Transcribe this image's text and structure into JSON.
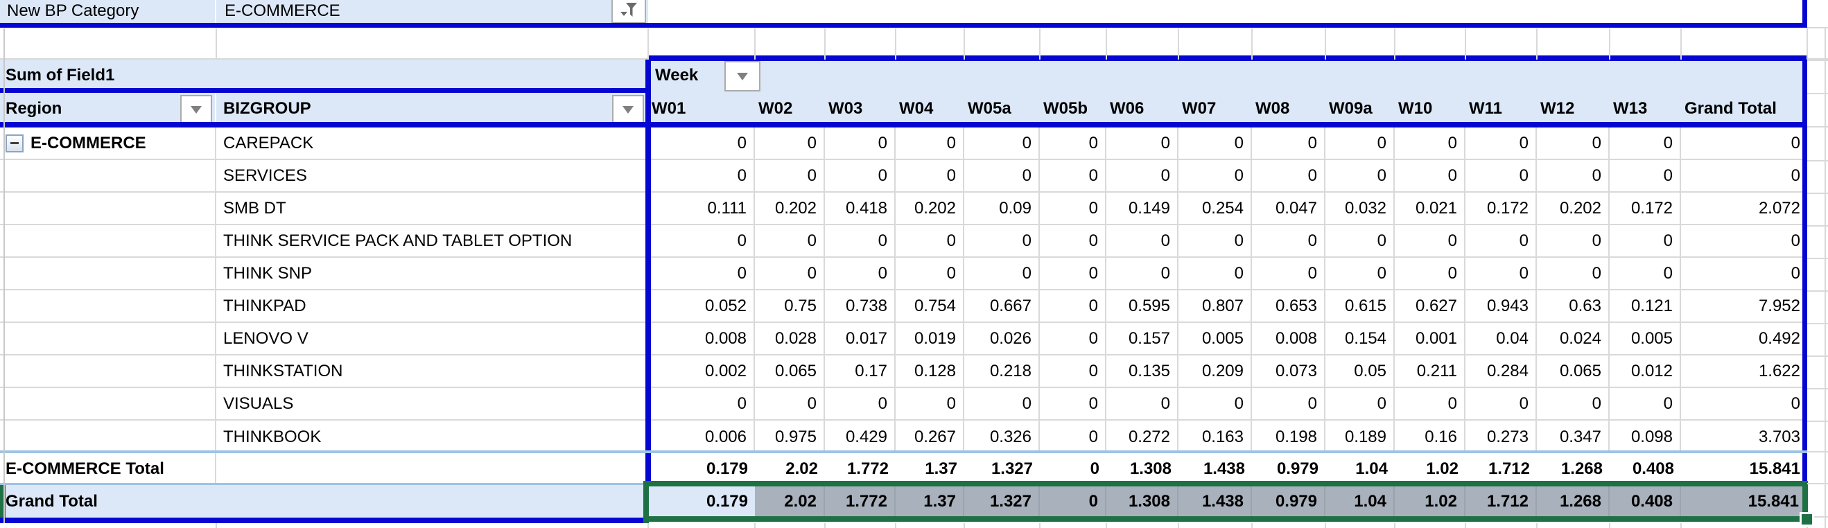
{
  "filter": {
    "label": "New BP Category",
    "value": "E-COMMERCE"
  },
  "pivot": {
    "measure_label": "Sum of Field1",
    "column_field": "Week",
    "row_field_1": "Region",
    "row_field_2": "BIZGROUP",
    "region_group": "E-COMMERCE",
    "columns": [
      "W01",
      "W02",
      "W03",
      "W04",
      "W05a",
      "W05b",
      "W06",
      "W07",
      "W08",
      "W09a",
      "W10",
      "W11",
      "W12",
      "W13",
      "Grand Total"
    ],
    "rows": [
      {
        "bizgroup": "CAREPACK",
        "values": [
          "0",
          "0",
          "0",
          "0",
          "0",
          "0",
          "0",
          "0",
          "0",
          "0",
          "0",
          "0",
          "0",
          "0",
          "0"
        ]
      },
      {
        "bizgroup": "SERVICES",
        "values": [
          "0",
          "0",
          "0",
          "0",
          "0",
          "0",
          "0",
          "0",
          "0",
          "0",
          "0",
          "0",
          "0",
          "0",
          "0"
        ]
      },
      {
        "bizgroup": "SMB DT",
        "values": [
          "0.111",
          "0.202",
          "0.418",
          "0.202",
          "0.09",
          "0",
          "0.149",
          "0.254",
          "0.047",
          "0.032",
          "0.021",
          "0.172",
          "0.202",
          "0.172",
          "2.072"
        ]
      },
      {
        "bizgroup": "THINK SERVICE PACK AND TABLET OPTION",
        "values": [
          "0",
          "0",
          "0",
          "0",
          "0",
          "0",
          "0",
          "0",
          "0",
          "0",
          "0",
          "0",
          "0",
          "0",
          "0"
        ]
      },
      {
        "bizgroup": "THINK SNP",
        "values": [
          "0",
          "0",
          "0",
          "0",
          "0",
          "0",
          "0",
          "0",
          "0",
          "0",
          "0",
          "0",
          "0",
          "0",
          "0"
        ]
      },
      {
        "bizgroup": "THINKPAD",
        "values": [
          "0.052",
          "0.75",
          "0.738",
          "0.754",
          "0.667",
          "0",
          "0.595",
          "0.807",
          "0.653",
          "0.615",
          "0.627",
          "0.943",
          "0.63",
          "0.121",
          "7.952"
        ]
      },
      {
        "bizgroup": "LENOVO V",
        "values": [
          "0.008",
          "0.028",
          "0.017",
          "0.019",
          "0.026",
          "0",
          "0.157",
          "0.005",
          "0.008",
          "0.154",
          "0.001",
          "0.04",
          "0.024",
          "0.005",
          "0.492"
        ]
      },
      {
        "bizgroup": "THINKSTATION",
        "values": [
          "0.002",
          "0.065",
          "0.17",
          "0.128",
          "0.218",
          "0",
          "0.135",
          "0.209",
          "0.073",
          "0.05",
          "0.211",
          "0.284",
          "0.065",
          "0.012",
          "1.622"
        ]
      },
      {
        "bizgroup": "VISUALS",
        "values": [
          "0",
          "0",
          "0",
          "0",
          "0",
          "0",
          "0",
          "0",
          "0",
          "0",
          "0",
          "0",
          "0",
          "0",
          "0"
        ]
      },
      {
        "bizgroup": "THINKBOOK",
        "values": [
          "0.006",
          "0.975",
          "0.429",
          "0.267",
          "0.326",
          "0",
          "0.272",
          "0.163",
          "0.198",
          "0.189",
          "0.16",
          "0.273",
          "0.347",
          "0.098",
          "3.703"
        ]
      }
    ],
    "ecommerce_total": {
      "label": "E-COMMERCE Total",
      "values": [
        "0.179",
        "2.02",
        "1.772",
        "1.37",
        "1.327",
        "0",
        "1.308",
        "1.438",
        "0.979",
        "1.04",
        "1.02",
        "1.712",
        "1.268",
        "0.408",
        "15.841"
      ]
    },
    "grand_total": {
      "label": "Grand Total",
      "values": [
        "0.179",
        "2.02",
        "1.772",
        "1.37",
        "1.327",
        "0",
        "1.308",
        "1.438",
        "0.979",
        "1.04",
        "1.02",
        "1.712",
        "1.268",
        "0.408",
        "15.841"
      ]
    }
  },
  "colors": {
    "header_fill": "#DCE8F7",
    "border_blue": "#0606D2",
    "separator_blue": "#9DC3E6",
    "gridline": "#D9D9D9",
    "selection_green": "#1E7144",
    "selection_gray": "#A9B1BC"
  }
}
